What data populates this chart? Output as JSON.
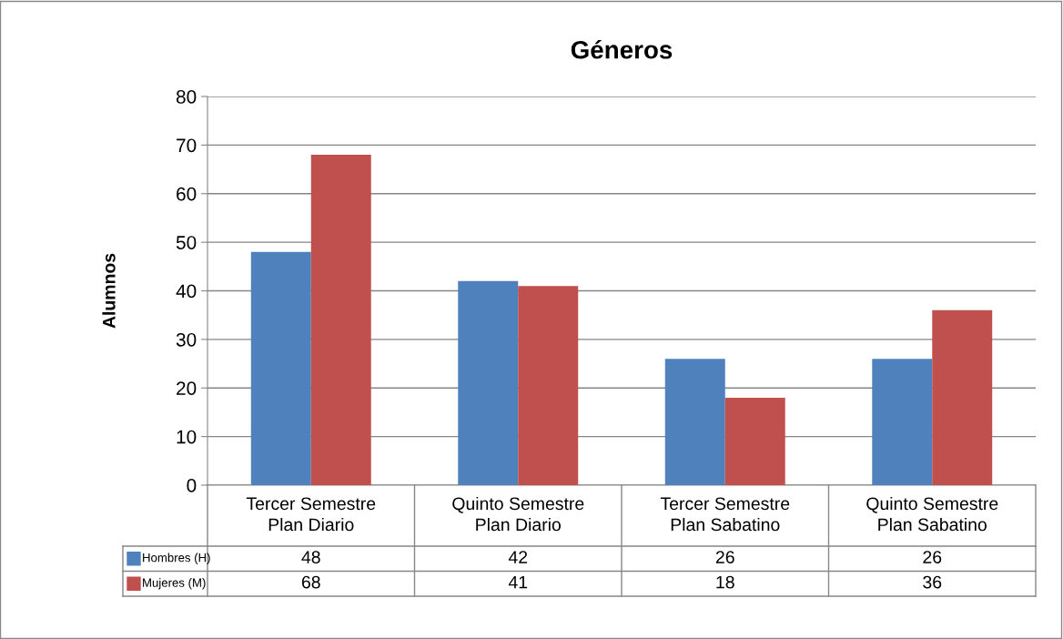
{
  "chart_data": {
    "type": "bar",
    "title": "Géneros",
    "ylabel": "Alumnos",
    "categories": [
      "Tercer Semestre\nPlan Diario",
      "Quinto Semestre\nPlan Diario",
      "Tercer Semestre\nPlan Sabatino",
      "Quinto Semestre\nPlan Sabatino"
    ],
    "series": [
      {
        "name": "Hombres (H)",
        "color": "#4f81bd",
        "values": [
          48,
          42,
          26,
          26
        ]
      },
      {
        "name": "Mujeres (M)",
        "color": "#c0504d",
        "values": [
          68,
          41,
          18,
          36
        ]
      }
    ],
    "ylim": [
      0,
      80
    ],
    "yticks": [
      0,
      10,
      20,
      30,
      40,
      50,
      60,
      70,
      80
    ],
    "grid": "y",
    "legend": "bottom",
    "data_labels": true
  }
}
